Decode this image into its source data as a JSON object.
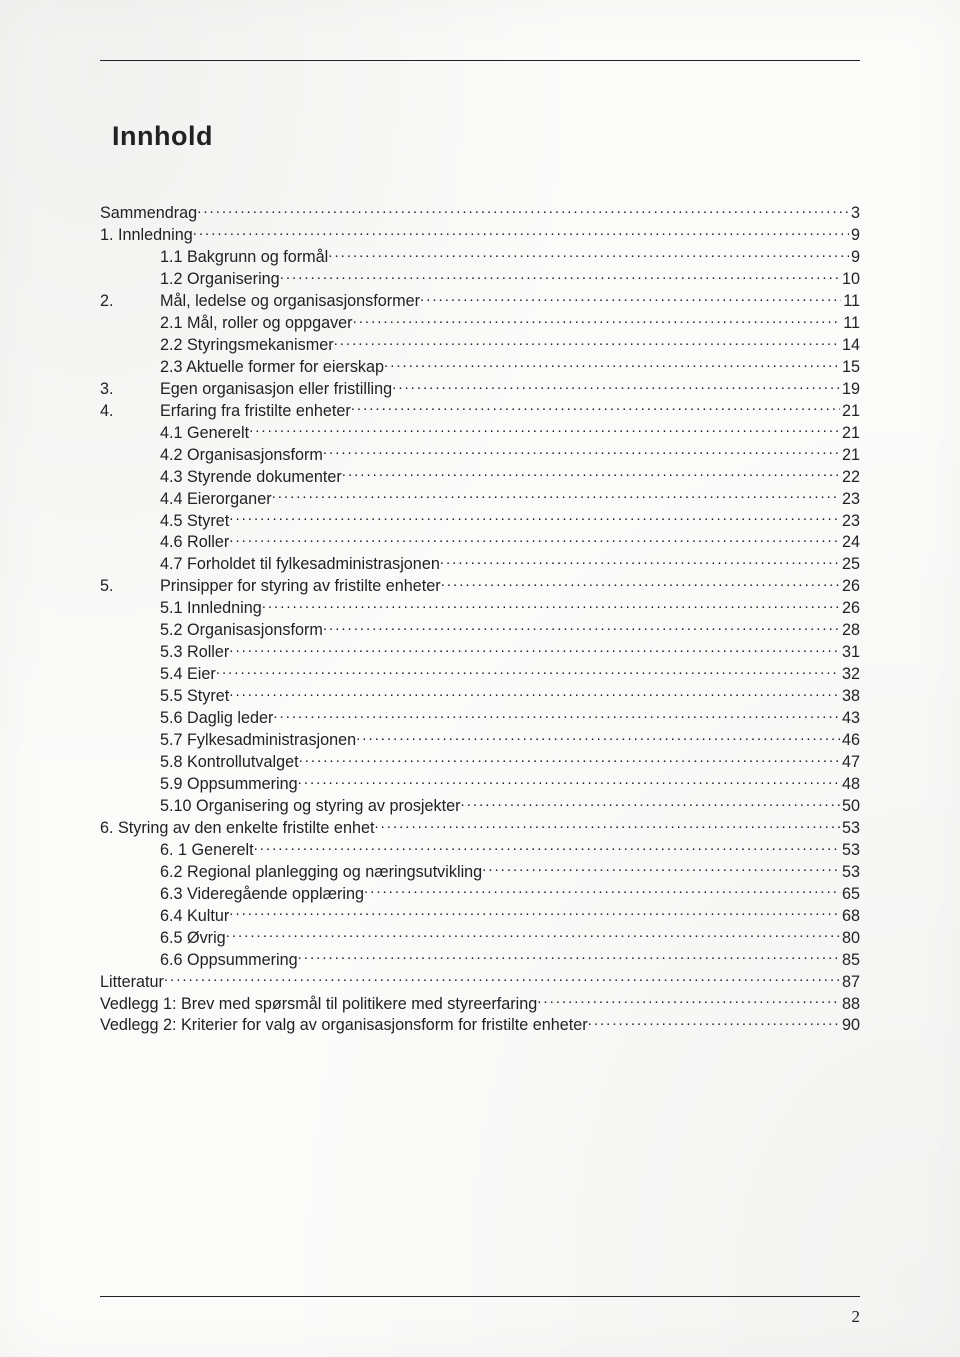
{
  "title": "Innhold",
  "page_number": "2",
  "toc": [
    {
      "indent": "indent-0",
      "num": "",
      "label": "Sammendrag",
      "page": "3"
    },
    {
      "indent": "indent-0",
      "num": "",
      "label": "1. Innledning",
      "page": "9"
    },
    {
      "indent": "indent-2",
      "num": "",
      "label": "1.1 Bakgrunn og formål",
      "page": "9"
    },
    {
      "indent": "indent-2",
      "num": "",
      "label": "1.2 Organisering",
      "page": "10"
    },
    {
      "indent": "indent-1",
      "num": "2.",
      "label": "Mål, ledelse og organisasjonsformer",
      "page": "11"
    },
    {
      "indent": "indent-2",
      "num": "",
      "label": "2.1 Mål, roller og oppgaver",
      "page": "11"
    },
    {
      "indent": "indent-2",
      "num": "",
      "label": "2.2 Styringsmekanismer",
      "page": "14"
    },
    {
      "indent": "indent-2",
      "num": "",
      "label": "2.3 Aktuelle former for eierskap",
      "page": "15"
    },
    {
      "indent": "indent-1",
      "num": "3.",
      "label": "Egen organisasjon eller fristilling",
      "page": "19"
    },
    {
      "indent": "indent-1",
      "num": "4.",
      "label": "Erfaring fra fristilte enheter",
      "page": "21"
    },
    {
      "indent": "indent-2",
      "num": "",
      "label": "4.1 Generelt",
      "page": "21"
    },
    {
      "indent": "indent-2",
      "num": "",
      "label": "4.2 Organisasjonsform",
      "page": "21"
    },
    {
      "indent": "indent-2",
      "num": "",
      "label": "4.3 Styrende dokumenter",
      "page": "22"
    },
    {
      "indent": "indent-2",
      "num": "",
      "label": "4.4 Eierorganer",
      "page": "23"
    },
    {
      "indent": "indent-2",
      "num": "",
      "label": "4.5 Styret",
      "page": "23"
    },
    {
      "indent": "indent-2",
      "num": "",
      "label": "4.6 Roller",
      "page": "24"
    },
    {
      "indent": "indent-2",
      "num": "",
      "label": "4.7 Forholdet til fylkesadministrasjonen",
      "page": "25"
    },
    {
      "indent": "indent-1",
      "num": "5.",
      "label": "Prinsipper for styring av fristilte enheter",
      "page": "26"
    },
    {
      "indent": "indent-2",
      "num": "",
      "label": "5.1 Innledning",
      "page": "26"
    },
    {
      "indent": "indent-2",
      "num": "",
      "label": "5.2 Organisasjonsform",
      "page": "28"
    },
    {
      "indent": "indent-2",
      "num": "",
      "label": "5.3 Roller",
      "page": "31"
    },
    {
      "indent": "indent-2",
      "num": "",
      "label": "5.4 Eier",
      "page": "32"
    },
    {
      "indent": "indent-2",
      "num": "",
      "label": "5.5 Styret",
      "page": "38"
    },
    {
      "indent": "indent-2",
      "num": "",
      "label": "5.6 Daglig leder",
      "page": "43"
    },
    {
      "indent": "indent-2",
      "num": "",
      "label": "5.7 Fylkesadministrasjonen",
      "page": "46"
    },
    {
      "indent": "indent-2",
      "num": "",
      "label": "5.8 Kontrollutvalget",
      "page": "47"
    },
    {
      "indent": "indent-2",
      "num": "",
      "label": "5.9 Oppsummering",
      "page": "48"
    },
    {
      "indent": "indent-2",
      "num": "",
      "label": "5.10 Organisering og styring av prosjekter",
      "page": "50"
    },
    {
      "indent": "indent-0",
      "num": "",
      "label": "6. Styring av den enkelte fristilte enhet",
      "page": "53"
    },
    {
      "indent": "indent-2",
      "num": "",
      "label": "6. 1 Generelt",
      "page": "53"
    },
    {
      "indent": "indent-2",
      "num": "",
      "label": "6.2 Regional planlegging og næringsutvikling",
      "page": "53"
    },
    {
      "indent": "indent-2",
      "num": "",
      "label": "6.3 Videregående opplæring",
      "page": "65"
    },
    {
      "indent": "indent-2",
      "num": "",
      "label": "6.4 Kultur",
      "page": "68"
    },
    {
      "indent": "indent-2",
      "num": "",
      "label": "6.5 Øvrig",
      "page": "80"
    },
    {
      "indent": "indent-2",
      "num": "",
      "label": "6.6 Oppsummering",
      "page": "85"
    },
    {
      "indent": "indent-0",
      "num": "",
      "label": "Litteratur",
      "page": "87"
    },
    {
      "indent": "indent-0",
      "num": "",
      "label": "Vedlegg 1: Brev med spørsmål til politikere med styreerfaring",
      "page": "88"
    },
    {
      "indent": "indent-0",
      "num": "",
      "label": "Vedlegg 2: Kriterier for valg av organisasjonsform for fristilte enheter",
      "page": "90"
    }
  ]
}
